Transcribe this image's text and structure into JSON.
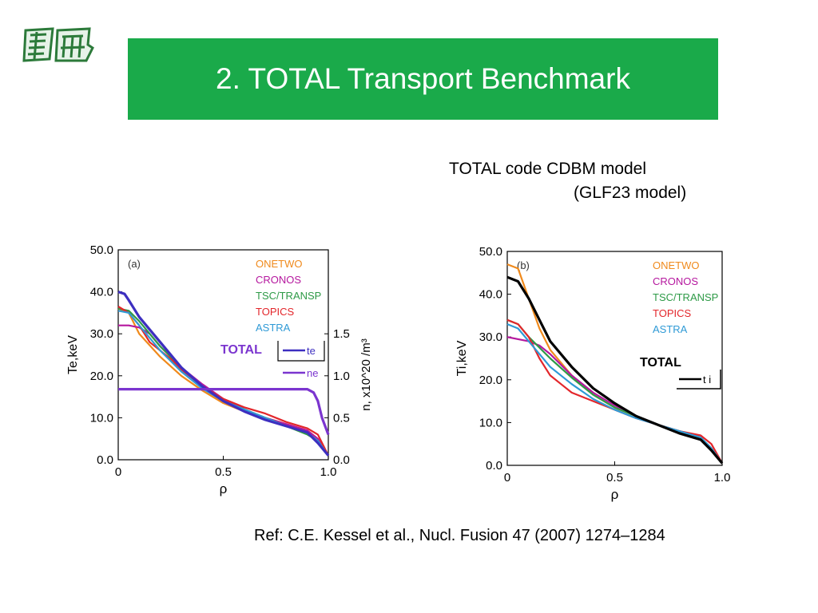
{
  "title": "2. TOTAL Transport Benchmark",
  "subtitle_line1": "TOTAL code  CDBM model",
  "subtitle_line2": "(GLF23 model)",
  "reference": "Ref: C.E. Kessel et al., Nucl. Fusion 47 (2007) 1274–1284",
  "colors": {
    "title_bar": "#1aaa4a",
    "ONETWO": "#f08a1c",
    "CRONOS": "#b5179e",
    "TSC/TRANSP": "#2e9a47",
    "TOPICS": "#e3262b",
    "ASTRA": "#2f9ad6",
    "TOTAL_a": "#3d2fc0",
    "TOTAL_ne": "#7b35cf",
    "TOTAL_b": "#000000"
  },
  "chart_data": [
    {
      "type": "line",
      "panel_label": "(a)",
      "xlabel": "ρ",
      "ylabel": "Te,keV",
      "y2label": "n, x10^20 /m³",
      "xlim": [
        0,
        1.0
      ],
      "ylim": [
        0,
        50
      ],
      "y2lim": [
        0,
        2.5
      ],
      "x_ticks": [
        "0",
        "0.5",
        "1.0"
      ],
      "y_ticks": [
        "0.0",
        "10.0",
        "20.0",
        "30.0",
        "40.0",
        "50.0"
      ],
      "y2_ticks": [
        "0.0",
        "0.5",
        "1.0",
        "1.5"
      ],
      "legend": [
        "ONETWO",
        "CRONOS",
        "TSC/TRANSP",
        "TOPICS",
        "ASTRA"
      ],
      "total_label": "TOTAL",
      "total_legend": [
        "te",
        "ne"
      ],
      "series": [
        {
          "name": "ONETWO",
          "x": [
            0,
            0.05,
            0.1,
            0.2,
            0.3,
            0.4,
            0.5,
            0.6,
            0.7,
            0.8,
            0.9,
            0.95,
            1.0
          ],
          "y": [
            36,
            35,
            30,
            24.5,
            20,
            16.5,
            13.5,
            11.5,
            10,
            8.5,
            7,
            5,
            1
          ]
        },
        {
          "name": "CRONOS",
          "x": [
            0,
            0.05,
            0.1,
            0.15,
            0.2,
            0.3,
            0.4,
            0.5,
            0.6,
            0.7,
            0.8,
            0.9,
            0.95,
            1.0
          ],
          "y": [
            32,
            32,
            31.5,
            30,
            27,
            22,
            18,
            14.5,
            12,
            10,
            8.5,
            7,
            5,
            1
          ]
        },
        {
          "name": "TSC/TRANSP",
          "x": [
            0,
            0.05,
            0.1,
            0.2,
            0.3,
            0.4,
            0.5,
            0.6,
            0.7,
            0.8,
            0.9,
            0.95,
            1.0
          ],
          "y": [
            36,
            35.5,
            33,
            27,
            22,
            17.5,
            14,
            12,
            10,
            8,
            6,
            4.5,
            1
          ]
        },
        {
          "name": "TOPICS",
          "x": [
            0,
            0.05,
            0.1,
            0.15,
            0.2,
            0.25,
            0.3,
            0.4,
            0.5,
            0.6,
            0.7,
            0.8,
            0.9,
            0.95,
            1.0
          ],
          "y": [
            36.5,
            35,
            32,
            28,
            26,
            24,
            21.5,
            17.5,
            14.5,
            12.5,
            11,
            9,
            7.5,
            6,
            1
          ]
        },
        {
          "name": "ASTRA",
          "x": [
            0,
            0.05,
            0.1,
            0.2,
            0.3,
            0.4,
            0.5,
            0.6,
            0.7,
            0.8,
            0.9,
            0.95,
            1.0
          ],
          "y": [
            35.5,
            35,
            32,
            26,
            21,
            17,
            14,
            12,
            10,
            8,
            6.5,
            4.5,
            1
          ]
        },
        {
          "name": "te",
          "x": [
            0,
            0.03,
            0.05,
            0.1,
            0.2,
            0.3,
            0.4,
            0.5,
            0.6,
            0.7,
            0.8,
            0.9,
            0.95,
            1.0
          ],
          "y": [
            40,
            39.5,
            38,
            34,
            28,
            22,
            17.5,
            14,
            11.5,
            9.5,
            8,
            6.5,
            4,
            1
          ]
        },
        {
          "name": "ne",
          "x": [
            0,
            0.2,
            0.4,
            0.6,
            0.8,
            0.9,
            0.93,
            0.95,
            0.97,
            1.0
          ],
          "y2": [
            0.84,
            0.84,
            0.84,
            0.84,
            0.84,
            0.84,
            0.8,
            0.7,
            0.5,
            0.3
          ]
        }
      ]
    },
    {
      "type": "line",
      "panel_label": "(b)",
      "xlabel": "ρ",
      "ylabel": "Ti,keV",
      "xlim": [
        0,
        1.0
      ],
      "ylim": [
        0,
        50
      ],
      "x_ticks": [
        "0",
        "0.5",
        "1.0"
      ],
      "y_ticks": [
        "0.0",
        "10.0",
        "20.0",
        "30.0",
        "40.0",
        "50.0"
      ],
      "legend": [
        "ONETWO",
        "CRONOS",
        "TSC/TRANSP",
        "TOPICS",
        "ASTRA"
      ],
      "total_label": "TOTAL",
      "total_legend": [
        "t i"
      ],
      "series": [
        {
          "name": "ONETWO",
          "x": [
            0,
            0.05,
            0.1,
            0.15,
            0.2,
            0.3,
            0.4,
            0.5,
            0.6,
            0.7,
            0.8,
            0.9,
            0.95,
            1.0
          ],
          "y": [
            47,
            46,
            39,
            32,
            27,
            21,
            16.5,
            13.5,
            11.5,
            9.5,
            8,
            6.5,
            4,
            0.5
          ]
        },
        {
          "name": "CRONOS",
          "x": [
            0,
            0.05,
            0.1,
            0.15,
            0.2,
            0.3,
            0.4,
            0.5,
            0.6,
            0.7,
            0.8,
            0.9,
            0.95,
            1.0
          ],
          "y": [
            30,
            29.5,
            29,
            28,
            26,
            21,
            17,
            14,
            11.5,
            9.5,
            8,
            6.5,
            4,
            0.5
          ]
        },
        {
          "name": "TSC/TRANSP",
          "x": [
            0,
            0.05,
            0.1,
            0.2,
            0.3,
            0.4,
            0.5,
            0.6,
            0.7,
            0.8,
            0.9,
            0.95,
            1.0
          ],
          "y": [
            34,
            33,
            30,
            25,
            20.5,
            16.5,
            13.5,
            11.5,
            9.5,
            8,
            6.5,
            4,
            0.5
          ]
        },
        {
          "name": "TOPICS",
          "x": [
            0,
            0.05,
            0.1,
            0.15,
            0.2,
            0.25,
            0.3,
            0.4,
            0.5,
            0.6,
            0.7,
            0.8,
            0.9,
            0.95,
            1.0
          ],
          "y": [
            34,
            33,
            30,
            25,
            21,
            19,
            17,
            15,
            13,
            11,
            9.5,
            8,
            7,
            5,
            0.5
          ]
        },
        {
          "name": "ASTRA",
          "x": [
            0,
            0.05,
            0.1,
            0.2,
            0.3,
            0.4,
            0.5,
            0.6,
            0.7,
            0.8,
            0.9,
            0.95,
            1.0
          ],
          "y": [
            33,
            32,
            29,
            23,
            19,
            15.5,
            13,
            11,
            9.5,
            8,
            6.5,
            4,
            0.5
          ]
        },
        {
          "name": "t i",
          "x": [
            0,
            0.05,
            0.1,
            0.15,
            0.2,
            0.3,
            0.4,
            0.5,
            0.6,
            0.7,
            0.8,
            0.9,
            0.95,
            1.0
          ],
          "y": [
            44,
            43,
            39,
            34,
            29,
            23,
            18,
            14.5,
            11.5,
            9.5,
            7.5,
            6,
            3.5,
            0.5
          ]
        }
      ]
    }
  ]
}
